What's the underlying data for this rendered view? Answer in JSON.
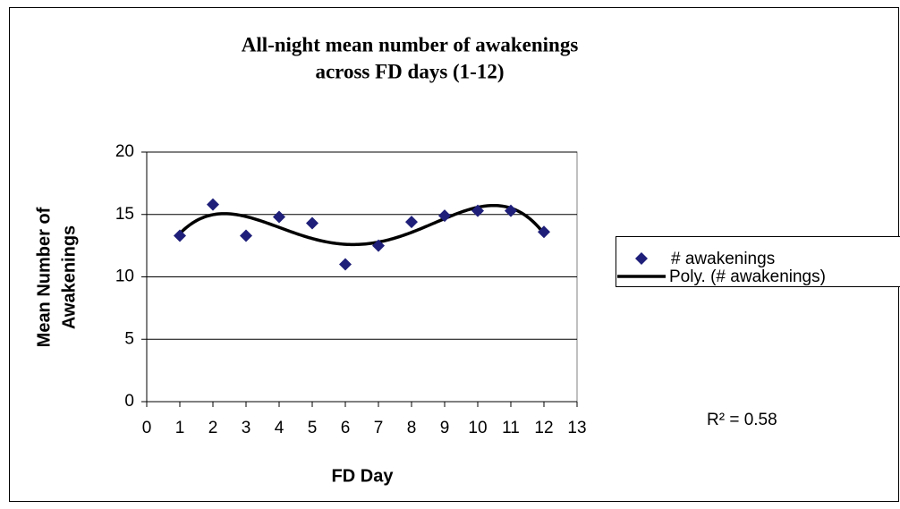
{
  "chart_data": {
    "type": "scatter",
    "title": [
      "All-night mean number of awakenings",
      "across FD days (1-12)"
    ],
    "x_label": "FD Day",
    "y_label": [
      "Mean Number of",
      "Awakenings"
    ],
    "x": [
      1,
      2,
      3,
      4,
      5,
      6,
      7,
      8,
      9,
      10,
      11,
      12
    ],
    "series": [
      {
        "name": "# awakenings",
        "color": "#1f1f7a",
        "values": [
          13.3,
          15.8,
          13.3,
          14.8,
          14.3,
          11.0,
          12.5,
          14.4,
          14.9,
          15.3,
          15.3,
          13.6
        ]
      }
    ],
    "trendline": {
      "name": "Poly. (# awakenings)",
      "order": 4,
      "color": "#000000",
      "r2_label": "R² = 0.58"
    },
    "xlim": [
      0,
      13
    ],
    "xticks": [
      0,
      1,
      2,
      3,
      4,
      5,
      6,
      7,
      8,
      9,
      10,
      11,
      12,
      13
    ],
    "ylim": [
      0,
      20
    ],
    "yticks": [
      0,
      5,
      10,
      15,
      20
    ],
    "grid": true,
    "legend": "right"
  }
}
